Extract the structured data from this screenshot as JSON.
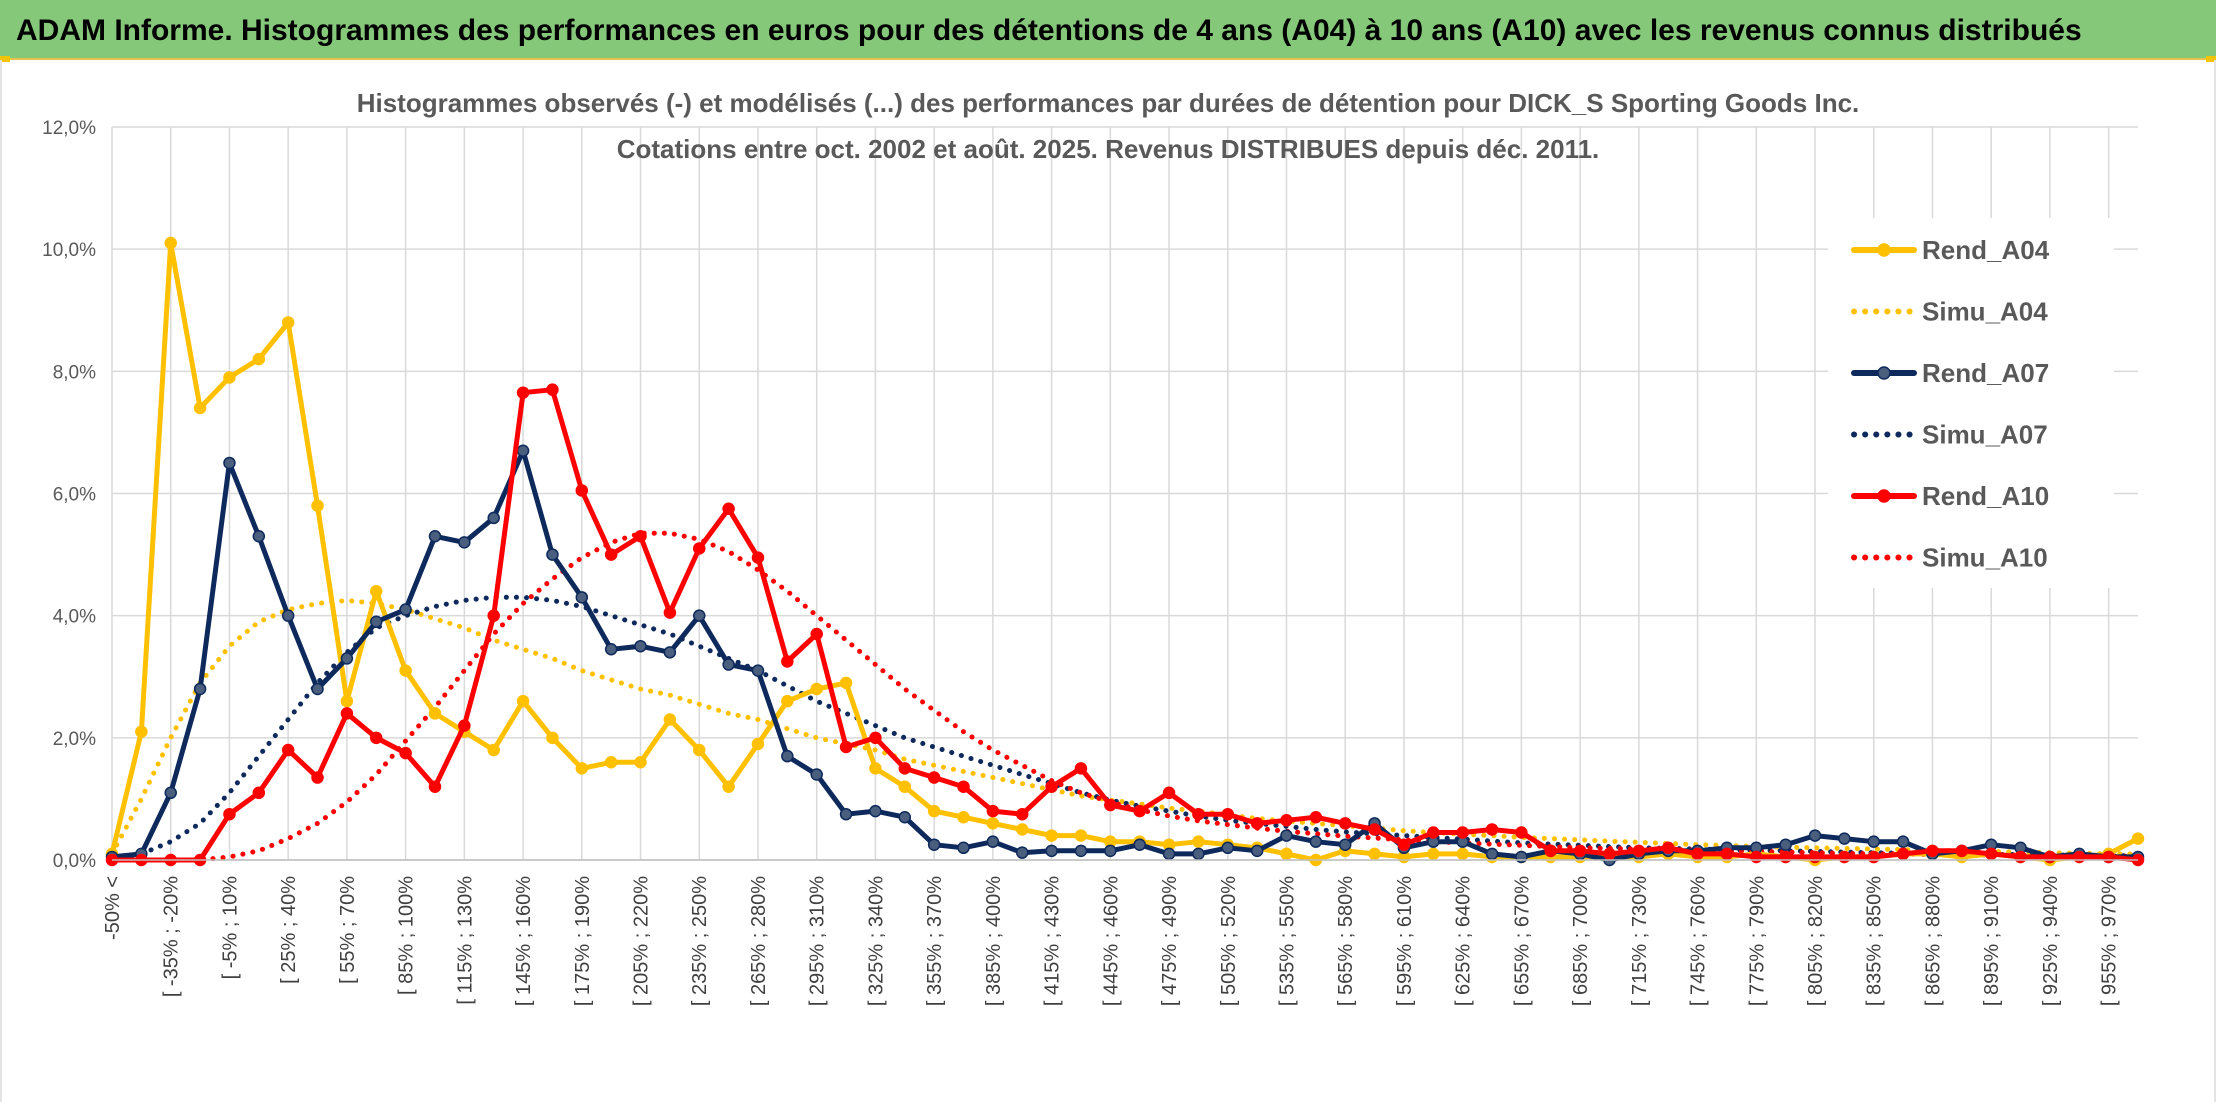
{
  "banner": {
    "title": "ADAM Informe. Histogrammes des performances en euros pour des détentions de 4 ans (A04) à 10 ans (A10) avec les revenus connus distribués"
  },
  "chart_data": {
    "type": "line",
    "title": "Histogrammes observés (-) et modélisés (...) des performances par durées de détention pour DICK_S Sporting Goods Inc.",
    "subtitle": "Cotations entre oct. 2002 et août. 2025. Revenus DISTRIBUES depuis déc. 2011.",
    "xlabel": "",
    "ylabel": "",
    "ylim": [
      0,
      12
    ],
    "y_ticks": [
      "0,0%",
      "2,0%",
      "4,0%",
      "6,0%",
      "8,0%",
      "10,0%",
      "12,0%"
    ],
    "grid": true,
    "legend_position": "right",
    "x_labels": [
      "-50% <",
      "[ -35% ; -20%",
      "[ -5% ; 10%",
      "[ 25% ; 40%",
      "[ 55% ; 70%",
      "[ 85% ; 100%",
      "[ 115% ; 130%",
      "[ 145% ; 160%",
      "[ 175% ; 190%",
      "[ 205% ; 220%",
      "[ 235% ; 250%",
      "[ 265% ; 280%",
      "[ 295% ; 310%",
      "[ 325% ; 340%",
      "[ 355% ; 370%",
      "[ 385% ; 400%",
      "[ 415% ; 430%",
      "[ 445% ; 460%",
      "[ 475% ; 490%",
      "[ 505% ; 520%",
      "[ 535% ; 550%",
      "[ 565% ; 580%",
      "[ 595% ; 610%",
      "[ 625% ; 640%",
      "[ 655% ; 670%",
      "[ 685% ; 700%",
      "[ 715% ; 730%",
      "[ 745% ; 760%",
      "[ 775% ; 790%",
      "[ 805% ; 820%",
      "[ 835% ; 850%",
      "[ 865% ; 880%",
      "[ 895% ; 910%",
      "[ 925% ; 940%",
      "[ 955% ; 970%"
    ],
    "series": [
      {
        "name": "Rend_A04",
        "color": "#ffc000",
        "style": "solid",
        "markers": true,
        "values": [
          0.1,
          2.1,
          10.1,
          7.4,
          7.9,
          8.2,
          8.8,
          5.8,
          2.6,
          4.4,
          3.1,
          2.4,
          2.1,
          1.8,
          2.6,
          2.0,
          1.5,
          1.6,
          1.6,
          2.3,
          1.8,
          1.2,
          1.9,
          2.6,
          2.8,
          2.9,
          1.5,
          1.2,
          0.8,
          0.7,
          0.6,
          0.5,
          0.4,
          0.4,
          0.3,
          0.3,
          0.25,
          0.3,
          0.25,
          0.2,
          0.1,
          0.0,
          0.15,
          0.1,
          0.05,
          0.1,
          0.1,
          0.05,
          0.05,
          0.05,
          0.05,
          0.05,
          0.05,
          0.1,
          0.05,
          0.05,
          0.1,
          0.05,
          0.0,
          0.05,
          0.05,
          0.1,
          0.1,
          0.05,
          0.1,
          0.05,
          0.0,
          0.05,
          0.1,
          0.35
        ]
      },
      {
        "name": "Simu_A04",
        "color": "#ffc000",
        "style": "dotted",
        "markers": false,
        "values": [
          0.1,
          1.0,
          2.0,
          2.9,
          3.5,
          3.9,
          4.1,
          4.2,
          4.25,
          4.2,
          4.1,
          3.95,
          3.8,
          3.6,
          3.45,
          3.3,
          3.1,
          2.95,
          2.8,
          2.7,
          2.55,
          2.4,
          2.3,
          2.15,
          2.0,
          1.9,
          1.8,
          1.65,
          1.55,
          1.45,
          1.35,
          1.25,
          1.15,
          1.05,
          0.98,
          0.92,
          0.85,
          0.8,
          0.74,
          0.68,
          0.64,
          0.6,
          0.56,
          0.52,
          0.48,
          0.45,
          0.42,
          0.4,
          0.37,
          0.35,
          0.33,
          0.31,
          0.29,
          0.27,
          0.25,
          0.24,
          0.22,
          0.21,
          0.2,
          0.19,
          0.18,
          0.17,
          0.16,
          0.15,
          0.14,
          0.13,
          0.12,
          0.11,
          0.1,
          0.1
        ]
      },
      {
        "name": "Rend_A07",
        "color": "#0e2a5c",
        "style": "solid",
        "markers": true,
        "values": [
          0.05,
          0.1,
          1.1,
          2.8,
          6.5,
          5.3,
          4.0,
          2.8,
          3.3,
          3.9,
          4.1,
          5.3,
          5.2,
          5.6,
          6.7,
          5.0,
          4.3,
          3.45,
          3.5,
          3.4,
          4.0,
          3.2,
          3.1,
          1.7,
          1.4,
          0.75,
          0.8,
          0.7,
          0.25,
          0.2,
          0.3,
          0.12,
          0.15,
          0.15,
          0.15,
          0.25,
          0.1,
          0.1,
          0.2,
          0.15,
          0.4,
          0.3,
          0.25,
          0.6,
          0.2,
          0.3,
          0.3,
          0.1,
          0.05,
          0.15,
          0.1,
          0.0,
          0.1,
          0.15,
          0.15,
          0.2,
          0.2,
          0.25,
          0.4,
          0.35,
          0.3,
          0.3,
          0.1,
          0.15,
          0.25,
          0.2,
          0.05,
          0.1,
          0.05,
          0.05
        ]
      },
      {
        "name": "Simu_A07",
        "color": "#0e2a5c",
        "style": "dotted",
        "markers": false,
        "values": [
          0.0,
          0.1,
          0.3,
          0.6,
          1.1,
          1.7,
          2.3,
          2.9,
          3.4,
          3.8,
          4.0,
          4.15,
          4.25,
          4.3,
          4.3,
          4.25,
          4.15,
          4.0,
          3.85,
          3.7,
          3.5,
          3.3,
          3.1,
          2.85,
          2.6,
          2.4,
          2.2,
          2.0,
          1.85,
          1.7,
          1.55,
          1.4,
          1.25,
          1.1,
          0.98,
          0.88,
          0.8,
          0.72,
          0.65,
          0.6,
          0.55,
          0.5,
          0.46,
          0.43,
          0.4,
          0.37,
          0.34,
          0.31,
          0.28,
          0.26,
          0.24,
          0.22,
          0.2,
          0.19,
          0.18,
          0.17,
          0.16,
          0.15,
          0.14,
          0.13,
          0.12,
          0.11,
          0.1,
          0.1,
          0.09,
          0.09,
          0.08,
          0.08,
          0.07,
          0.07
        ]
      },
      {
        "name": "Rend_A10",
        "color": "#ff0000",
        "style": "solid",
        "markers": true,
        "values": [
          0.0,
          0.0,
          0.0,
          0.0,
          0.75,
          1.1,
          1.8,
          1.35,
          2.4,
          2.0,
          1.75,
          1.2,
          2.2,
          4.0,
          7.65,
          7.7,
          6.05,
          5.0,
          5.3,
          4.05,
          5.1,
          5.75,
          4.95,
          3.25,
          3.7,
          1.85,
          2.0,
          1.5,
          1.35,
          1.2,
          0.8,
          0.75,
          1.2,
          1.5,
          0.9,
          0.8,
          1.1,
          0.75,
          0.75,
          0.6,
          0.65,
          0.7,
          0.6,
          0.5,
          0.25,
          0.45,
          0.45,
          0.5,
          0.45,
          0.15,
          0.15,
          0.1,
          0.15,
          0.2,
          0.1,
          0.1,
          0.05,
          0.05,
          0.05,
          0.05,
          0.05,
          0.1,
          0.15,
          0.15,
          0.1,
          0.05,
          0.05,
          0.05,
          0.05,
          0.0
        ]
      },
      {
        "name": "Simu_A10",
        "color": "#ff0000",
        "style": "dotted",
        "markers": false,
        "values": [
          0.0,
          0.0,
          0.0,
          0.0,
          0.05,
          0.15,
          0.35,
          0.6,
          0.95,
          1.4,
          1.95,
          2.5,
          3.1,
          3.7,
          4.2,
          4.6,
          4.95,
          5.2,
          5.35,
          5.35,
          5.25,
          5.05,
          4.75,
          4.4,
          4.0,
          3.6,
          3.2,
          2.8,
          2.45,
          2.1,
          1.8,
          1.55,
          1.3,
          1.1,
          0.95,
          0.82,
          0.72,
          0.64,
          0.58,
          0.52,
          0.47,
          0.43,
          0.39,
          0.36,
          0.33,
          0.3,
          0.28,
          0.26,
          0.24,
          0.22,
          0.2,
          0.19,
          0.18,
          0.17,
          0.16,
          0.15,
          0.14,
          0.13,
          0.12,
          0.11,
          0.1,
          0.1,
          0.09,
          0.09,
          0.08,
          0.08,
          0.07,
          0.07,
          0.06,
          0.06
        ]
      }
    ]
  }
}
